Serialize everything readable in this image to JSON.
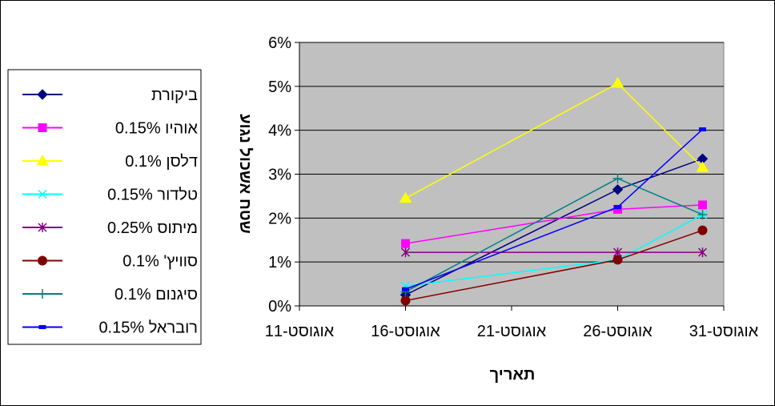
{
  "chart_data": {
    "type": "line",
    "xlabel": "תאריך",
    "ylabel": "שטח אשכול נגוע",
    "x_ticks": [
      "11-אוגוסט",
      "16-אוגוסט",
      "21-אוגוסט",
      "26-אוגוסט",
      "31-אוגוסט"
    ],
    "x_range": [
      "11-אוגוסט",
      "31-אוגוסט"
    ],
    "y_ticks": [
      "0%",
      "1%",
      "2%",
      "3%",
      "4%",
      "5%",
      "6%"
    ],
    "ylim": [
      0,
      6
    ],
    "grid": "horizontal",
    "plot_background": "#c0c0c0",
    "legend_position": "left",
    "series": [
      {
        "name": "ביקורת",
        "color": "#000080",
        "marker": "diamond",
        "points": [
          [
            "16-אוגוסט",
            0.25
          ],
          [
            "26-אוגוסט",
            2.65
          ],
          [
            "30-אוגוסט",
            3.35
          ]
        ]
      },
      {
        "name": "אוהיו 0.15%",
        "color": "#ff00ff",
        "marker": "square",
        "points": [
          [
            "16-אוגוסט",
            1.42
          ],
          [
            "26-אוגוסט",
            2.2
          ],
          [
            "30-אוגוסט",
            2.3
          ]
        ]
      },
      {
        "name": "דלסן 0.1%",
        "color": "#ffff00",
        "marker": "triangle",
        "points": [
          [
            "16-אוגוסט",
            2.45
          ],
          [
            "26-אוגוסט",
            5.07
          ],
          [
            "30-אוגוסט",
            3.15
          ]
        ]
      },
      {
        "name": "טלדור 0.15%",
        "color": "#00ffff",
        "marker": "x",
        "points": [
          [
            "16-אוגוסט",
            0.45
          ],
          [
            "26-אוגוסט",
            1.05
          ],
          [
            "30-אוגוסט",
            2.08
          ]
        ]
      },
      {
        "name": "מיתוס 0.25%",
        "color": "#800080",
        "marker": "star",
        "points": [
          [
            "16-אוגוסט",
            1.22
          ],
          [
            "26-אוגוסט",
            1.22
          ],
          [
            "30-אוגוסט",
            1.22
          ]
        ]
      },
      {
        "name": "סוויץ' 0.1%",
        "color": "#800000",
        "marker": "circle",
        "points": [
          [
            "16-אוגוסט",
            0.12
          ],
          [
            "26-אוגוסט",
            1.05
          ],
          [
            "30-אוגוסט",
            1.72
          ]
        ]
      },
      {
        "name": "סיגנום 0.1%",
        "color": "#008080",
        "marker": "plus",
        "points": [
          [
            "16-אוגוסט",
            0.32
          ],
          [
            "26-אוגוסט",
            2.9
          ],
          [
            "30-אוגוסט",
            2.08
          ]
        ]
      },
      {
        "name": "רובראל 0.15%",
        "color": "#0000ff",
        "marker": "dash",
        "points": [
          [
            "16-אוגוסט",
            0.38
          ],
          [
            "26-אוגוסט",
            2.25
          ],
          [
            "30-אוגוסט",
            4.02
          ]
        ]
      }
    ]
  }
}
